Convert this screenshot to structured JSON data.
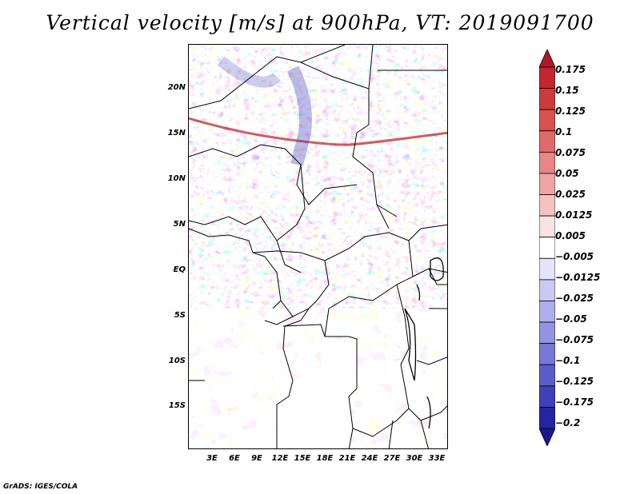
{
  "title": "Vertical velocity [m/s] at 900hPa, VT: 2019091700",
  "credit": "GrADS: IGES/COLA",
  "axes": {
    "y_ticks": [
      "20N",
      "15N",
      "10N",
      "5N",
      "EQ",
      "5S",
      "10S",
      "15S"
    ],
    "x_ticks": [
      "3E",
      "6E",
      "9E",
      "12E",
      "15E",
      "18E",
      "21E",
      "24E",
      "27E",
      "30E",
      "33E"
    ]
  },
  "colorbar": {
    "labels": [
      "0.175",
      "0.15",
      "0.125",
      "0.1",
      "0.075",
      "0.05",
      "0.025",
      "0.0125",
      "0.005",
      "−0.005",
      "−0.0125",
      "−0.025",
      "−0.05",
      "−0.075",
      "−0.1",
      "−0.125",
      "−0.175",
      "−0.2"
    ],
    "colors": [
      "#b2182b",
      "#c0282e",
      "#cc3b3b",
      "#d95050",
      "#e06a6a",
      "#e88585",
      "#efa3a3",
      "#f5c2c2",
      "#fbe2e2",
      "#ffffff",
      "#e4e4fb",
      "#c9c9f3",
      "#aeaeec",
      "#9393e4",
      "#7878d8",
      "#5c5cc9",
      "#4040b8",
      "#2525a3",
      "#1a1a8c"
    ]
  },
  "colors": {
    "positive": "#e06a6a",
    "negative": "#7878d8",
    "border": "#000000"
  }
}
